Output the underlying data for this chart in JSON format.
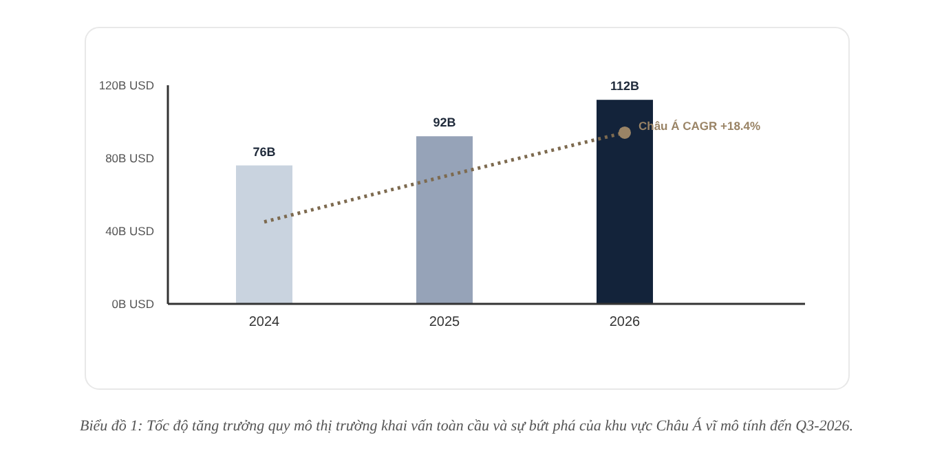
{
  "chart_data": {
    "type": "bar",
    "categories": [
      "2024",
      "2025",
      "2026"
    ],
    "series": [
      {
        "colors": [
          "#c9d3df",
          "#96a3b8",
          "#13233a"
        ],
        "values": [
          76,
          92,
          112
        ],
        "value_labels": [
          "76B",
          "92B",
          "112B"
        ]
      },
      {
        "type": "line",
        "color": "#7d6a4f",
        "line_style": "dotted",
        "values": [
          45,
          70,
          94
        ]
      },
      {
        "type": "scatter",
        "color": "#9a8466",
        "values": [
          null,
          null,
          94
        ]
      }
    ],
    "ylim": [
      0,
      120
    ],
    "yticks": [
      {
        "value": 0,
        "label": "0B USD"
      },
      {
        "value": 40,
        "label": "40B USD"
      },
      {
        "value": 80,
        "label": "80B USD"
      },
      {
        "value": 120,
        "label": "120B USD"
      }
    ],
    "grid": false,
    "legend": false,
    "annotations": [
      {
        "text": "Châu Á CAGR +18.4%",
        "x": "2026",
        "y": 94
      },
      "Biểu đồ 1: Tốc độ tăng trưởng quy mô thị trường khai vấn toàn cầu và sự bứt phá của khu vực Châu Á vĩ mô tính đến Q3-2026."
    ]
  }
}
